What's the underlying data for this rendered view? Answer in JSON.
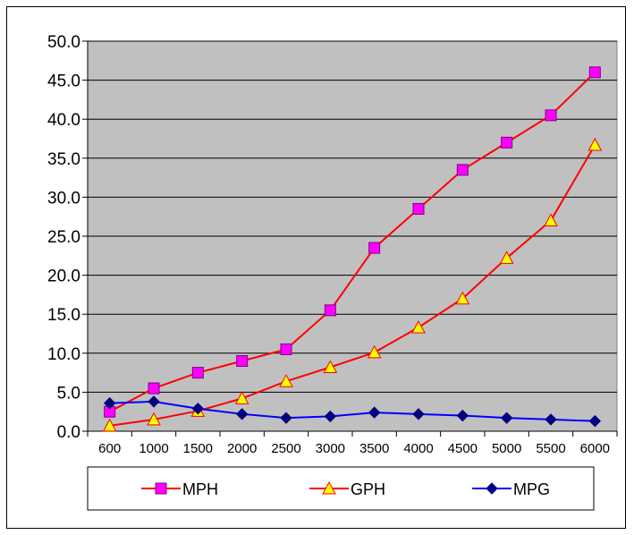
{
  "chart_data": {
    "type": "line",
    "title": "",
    "xlabel": "",
    "ylabel": "",
    "categories": [
      "600",
      "1000",
      "1500",
      "2000",
      "2500",
      "3000",
      "3500",
      "4000",
      "4500",
      "5000",
      "5500",
      "6000"
    ],
    "ylim": [
      0,
      50
    ],
    "yticks": [
      "0.0",
      "5.0",
      "10.0",
      "15.0",
      "20.0",
      "25.0",
      "30.0",
      "35.0",
      "40.0",
      "45.0",
      "50.0"
    ],
    "grid": true,
    "legend_position": "bottom",
    "plot_background": "#c0c0c0",
    "series": [
      {
        "name": "MPH",
        "values": [
          2.5,
          5.5,
          7.5,
          9.0,
          10.5,
          15.5,
          23.5,
          28.5,
          33.5,
          37.0,
          40.5,
          46.0
        ],
        "line_color": "#ff0000",
        "marker": "square",
        "marker_color": "#ff00ff"
      },
      {
        "name": "GPH",
        "values": [
          0.7,
          1.5,
          2.6,
          4.2,
          6.4,
          8.2,
          10.1,
          13.3,
          17.0,
          22.2,
          27.0,
          36.7
        ],
        "line_color": "#ff0000",
        "marker": "triangle",
        "marker_color": "#ffff00"
      },
      {
        "name": "MPG",
        "values": [
          3.6,
          3.8,
          2.9,
          2.2,
          1.7,
          1.9,
          2.4,
          2.2,
          2.0,
          1.7,
          1.5,
          1.3
        ],
        "line_color": "#0000ff",
        "marker": "diamond",
        "marker_color": "#000080"
      }
    ]
  }
}
